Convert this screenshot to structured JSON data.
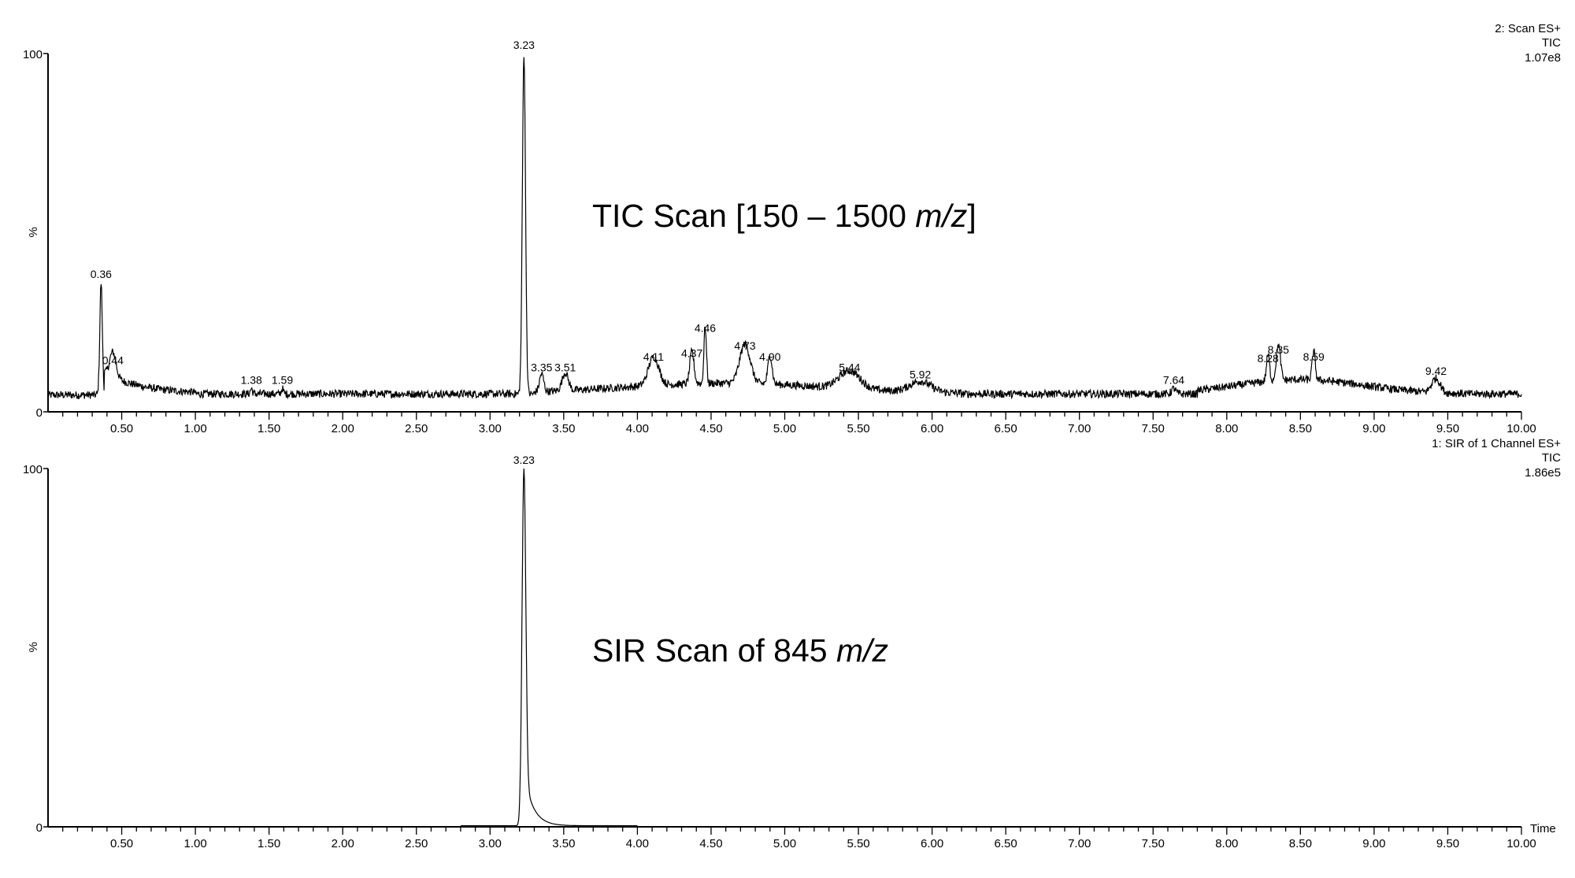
{
  "chart_data": [
    {
      "type": "line",
      "title": "TIC Scan [150 – 1500 m/z]",
      "title_parts": [
        "TIC Scan [150 – 1500 ",
        "m/z",
        "]"
      ],
      "header": [
        "2: Scan ES+",
        "TIC",
        "1.07e8"
      ],
      "xlabel": "",
      "ylabel": "%",
      "xlim": [
        0,
        10
      ],
      "ylim": [
        0,
        100
      ],
      "y_ticks": [
        "0",
        "100"
      ],
      "x_ticks": [
        "0.50",
        "1.00",
        "1.50",
        "2.00",
        "2.50",
        "3.00",
        "3.50",
        "4.00",
        "4.50",
        "5.00",
        "5.50",
        "6.00",
        "6.50",
        "7.00",
        "7.50",
        "8.00",
        "8.50",
        "9.00",
        "9.50",
        "10.00"
      ],
      "baseline_percent": 5,
      "trace_range": [
        0,
        10
      ],
      "peaks": [
        {
          "rt": 0.36,
          "label": "0.36",
          "percent": 36,
          "width": 0.012
        },
        {
          "rt": 0.44,
          "label": "0.44",
          "percent": 12,
          "width": 0.03
        },
        {
          "rt": 1.38,
          "label": "1.38",
          "percent": 6.5,
          "width": 0.01
        },
        {
          "rt": 1.59,
          "label": "1.59",
          "percent": 6.5,
          "width": 0.01
        },
        {
          "rt": 3.23,
          "label": "3.23",
          "percent": 100,
          "width": 0.015
        },
        {
          "rt": 3.35,
          "label": "3.35",
          "percent": 10,
          "width": 0.02
        },
        {
          "rt": 3.51,
          "label": "3.51",
          "percent": 10,
          "width": 0.03
        },
        {
          "rt": 4.11,
          "label": "4.11",
          "percent": 13,
          "width": 0.05
        },
        {
          "rt": 4.37,
          "label": "4.37",
          "percent": 14,
          "width": 0.02
        },
        {
          "rt": 4.46,
          "label": "4.46",
          "percent": 21,
          "width": 0.012
        },
        {
          "rt": 4.73,
          "label": "4.73",
          "percent": 16,
          "width": 0.05
        },
        {
          "rt": 4.9,
          "label": "4.90",
          "percent": 13,
          "width": 0.02
        },
        {
          "rt": 5.44,
          "label": "5.44",
          "percent": 10,
          "width": 0.1
        },
        {
          "rt": 5.92,
          "label": "5.92",
          "percent": 8,
          "width": 0.1
        },
        {
          "rt": 7.64,
          "label": "7.64",
          "percent": 6.5,
          "width": 0.02
        },
        {
          "rt": 8.28,
          "label": "8.28",
          "percent": 12.5,
          "width": 0.015
        },
        {
          "rt": 8.35,
          "label": "8.35",
          "percent": 15,
          "width": 0.02
        },
        {
          "rt": 8.59,
          "label": "8.59",
          "percent": 13,
          "width": 0.015
        },
        {
          "rt": 9.42,
          "label": "9.42",
          "percent": 9,
          "width": 0.04
        }
      ]
    },
    {
      "type": "line",
      "title": "SIR Scan of 845 m/z",
      "title_parts": [
        "SIR Scan of 845 ",
        "m/z",
        ""
      ],
      "header": [
        "1: SIR of 1 Channel ES+",
        "TIC",
        "1.86e5"
      ],
      "xlabel": "Time",
      "ylabel": "%",
      "xlim": [
        0,
        10
      ],
      "ylim": [
        0,
        100
      ],
      "y_ticks": [
        "0",
        "100"
      ],
      "x_ticks": [
        "0.50",
        "1.00",
        "1.50",
        "2.00",
        "2.50",
        "3.00",
        "3.50",
        "4.00",
        "4.50",
        "5.00",
        "5.50",
        "6.00",
        "6.50",
        "7.00",
        "7.50",
        "8.00",
        "8.50",
        "9.00",
        "9.50",
        "10.00"
      ],
      "baseline_percent": 0.3,
      "trace_range": [
        2.8,
        4.0
      ],
      "peaks": [
        {
          "rt": 3.23,
          "label": "3.23",
          "percent": 100,
          "width": 0.018,
          "tail": true
        }
      ]
    }
  ]
}
